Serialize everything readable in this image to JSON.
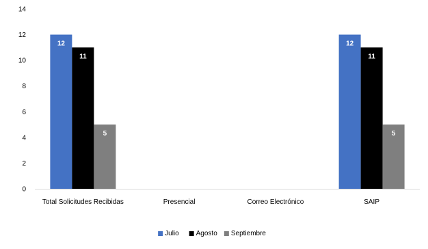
{
  "chart_data": {
    "type": "bar",
    "title": "",
    "xlabel": "",
    "ylabel": "",
    "categories": [
      "Total Solicitudes Recibidas",
      "Presencial",
      "Correo Electrónico",
      "SAIP"
    ],
    "series": [
      {
        "name": "Julio",
        "values": [
          12,
          0,
          0,
          12
        ],
        "color": "#4472C4"
      },
      {
        "name": "Agosto",
        "values": [
          11,
          0,
          0,
          11
        ],
        "color": "#000000"
      },
      {
        "name": "Septiembre",
        "values": [
          5,
          0,
          0,
          5
        ],
        "color": "#7F7F7F"
      }
    ],
    "ylim": [
      0,
      14
    ],
    "yticks": [
      0,
      2,
      4,
      6,
      8,
      10,
      12,
      14
    ],
    "data_labels": true,
    "gridlines": false,
    "legend_position": "bottom"
  }
}
